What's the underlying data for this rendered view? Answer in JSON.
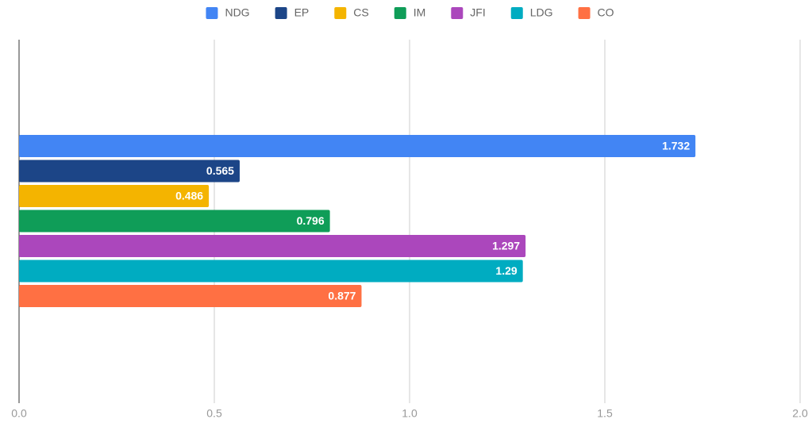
{
  "chart_data": {
    "type": "bar",
    "orientation": "horizontal",
    "categories": [
      null
    ],
    "series": [
      {
        "name": "NDG",
        "color": "#4285f4",
        "values": [
          1.732
        ]
      },
      {
        "name": "EP",
        "color": "#1c4587",
        "values": [
          0.565
        ]
      },
      {
        "name": "CS",
        "color": "#f4b400",
        "values": [
          0.486
        ]
      },
      {
        "name": "IM",
        "color": "#0f9d58",
        "values": [
          0.796
        ]
      },
      {
        "name": "JFI",
        "color": "#ab47bc",
        "values": [
          1.297
        ]
      },
      {
        "name": "LDG",
        "color": "#00acc1",
        "values": [
          1.29
        ]
      },
      {
        "name": "CO",
        "color": "#ff7043",
        "values": [
          0.877
        ]
      }
    ],
    "xlim": [
      0,
      2
    ],
    "xticks": [
      {
        "value": 0,
        "label": "0.0"
      },
      {
        "value": 0.5,
        "label": "0.5"
      },
      {
        "value": 1,
        "label": "1.0"
      },
      {
        "value": 1.5,
        "label": "1.5"
      },
      {
        "value": 2,
        "label": "2.0"
      }
    ],
    "grid": true,
    "legend": "top",
    "data_labels": true
  }
}
